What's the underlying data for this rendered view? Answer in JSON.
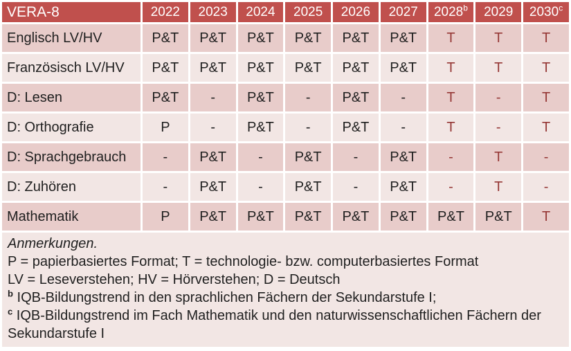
{
  "colors": {
    "header_bg": "#C0504D",
    "header_text": "#FFFFFF",
    "band_dark": "#E8CCCA",
    "band_light": "#F2E6E4",
    "red_text": "#953735",
    "body_text": "#1F1F1F"
  },
  "table": {
    "corner_label": "VERA-8",
    "years": [
      {
        "label": "2022",
        "sup": ""
      },
      {
        "label": "2023",
        "sup": ""
      },
      {
        "label": "2024",
        "sup": ""
      },
      {
        "label": "2025",
        "sup": ""
      },
      {
        "label": "2026",
        "sup": ""
      },
      {
        "label": "2027",
        "sup": ""
      },
      {
        "label": "2028",
        "sup": "b"
      },
      {
        "label": "2029",
        "sup": ""
      },
      {
        "label": "2030",
        "sup": "c"
      }
    ],
    "rows": [
      {
        "label": "Englisch LV/HV",
        "cells": [
          {
            "t": "P&T"
          },
          {
            "t": "P&T"
          },
          {
            "t": "P&T"
          },
          {
            "t": "P&T"
          },
          {
            "t": "P&T"
          },
          {
            "t": "P&T"
          },
          {
            "t": "T",
            "red": true
          },
          {
            "t": "T",
            "red": true
          },
          {
            "t": "T",
            "red": true
          }
        ]
      },
      {
        "label": "Französisch LV/HV",
        "cells": [
          {
            "t": "P&T"
          },
          {
            "t": "P&T"
          },
          {
            "t": "P&T"
          },
          {
            "t": "P&T"
          },
          {
            "t": "P&T"
          },
          {
            "t": "P&T"
          },
          {
            "t": "T",
            "red": true
          },
          {
            "t": "T",
            "red": true
          },
          {
            "t": "T",
            "red": true
          }
        ]
      },
      {
        "label": "D: Lesen",
        "cells": [
          {
            "t": "P&T"
          },
          {
            "t": "-"
          },
          {
            "t": "P&T"
          },
          {
            "t": "-"
          },
          {
            "t": "P&T"
          },
          {
            "t": "-"
          },
          {
            "t": "T",
            "red": true
          },
          {
            "t": "-",
            "red": true
          },
          {
            "t": "T",
            "red": true
          }
        ]
      },
      {
        "label": "D: Orthografie",
        "cells": [
          {
            "t": "P"
          },
          {
            "t": "-"
          },
          {
            "t": "P&T"
          },
          {
            "t": "-"
          },
          {
            "t": "P&T"
          },
          {
            "t": "-"
          },
          {
            "t": "T",
            "red": true
          },
          {
            "t": "-",
            "red": true
          },
          {
            "t": "T",
            "red": true
          }
        ]
      },
      {
        "label": "D: Sprachgebrauch",
        "cells": [
          {
            "t": "-"
          },
          {
            "t": "P&T"
          },
          {
            "t": "-"
          },
          {
            "t": "P&T"
          },
          {
            "t": "-"
          },
          {
            "t": "P&T"
          },
          {
            "t": "-",
            "red": true
          },
          {
            "t": "T",
            "red": true
          },
          {
            "t": "-",
            "red": true
          }
        ]
      },
      {
        "label": "D: Zuhören",
        "cells": [
          {
            "t": "-"
          },
          {
            "t": "P&T"
          },
          {
            "t": "-"
          },
          {
            "t": "P&T"
          },
          {
            "t": "-"
          },
          {
            "t": "P&T"
          },
          {
            "t": "-",
            "red": true
          },
          {
            "t": "T",
            "red": true
          },
          {
            "t": "-",
            "red": true
          }
        ]
      },
      {
        "label": "Mathematik",
        "cells": [
          {
            "t": "P"
          },
          {
            "t": "P&T"
          },
          {
            "t": "P&T"
          },
          {
            "t": "P&T"
          },
          {
            "t": "P&T"
          },
          {
            "t": "P&T"
          },
          {
            "t": "P&T"
          },
          {
            "t": "P&T"
          },
          {
            "t": "T",
            "red": true
          }
        ]
      }
    ]
  },
  "notes": {
    "heading": "Anmerkungen.",
    "lines": [
      {
        "sup": "",
        "text": "P = papierbasiertes Format; T = technologie- bzw. computerbasiertes Format"
      },
      {
        "sup": "",
        "text": "LV = Leseverstehen; HV = Hörverstehen; D = Deutsch"
      },
      {
        "sup": "b",
        "text": "IQB-Bildungstrend in den sprachlichen Fächern der Sekundarstufe I;"
      },
      {
        "sup": "c",
        "text": "IQB-Bildungstrend im Fach Mathematik und den naturwissenschaftlichen Fächern der Sekundarstufe I"
      }
    ]
  }
}
